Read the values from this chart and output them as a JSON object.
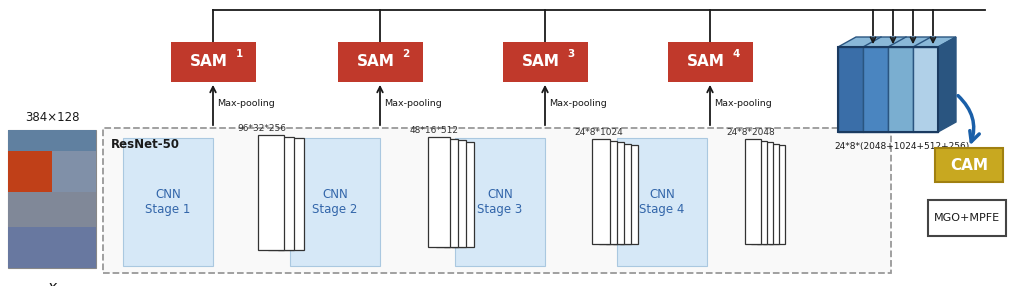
{
  "bg_color": "#ffffff",
  "sam_color": "#c0392b",
  "cnn_bg_color": "#d6e8f7",
  "cam_color": "#c8a820",
  "stages": [
    "CNN\nStage 1",
    "CNN\nStage 2",
    "CNN\nStage 3",
    "CNN\nStage 4"
  ],
  "sam_superscripts": [
    "1",
    "2",
    "3",
    "4"
  ],
  "dim_labels": [
    "96*32*256",
    "48*16*512",
    "24*8*1024",
    "24*8*2048"
  ],
  "dim_label_final": "24*8*(2048+1024+512+256)",
  "input_size": "384×128",
  "input_label": "x",
  "max_pool_label": "Max-pooling",
  "resnet_label": "ResNet-50",
  "cam_label": "CAM",
  "mgo_label": "MGO+MPFE",
  "blue_arrow_color": "#1a5fa8",
  "dark_color": "#1a1a1a",
  "gray_color": "#888888"
}
